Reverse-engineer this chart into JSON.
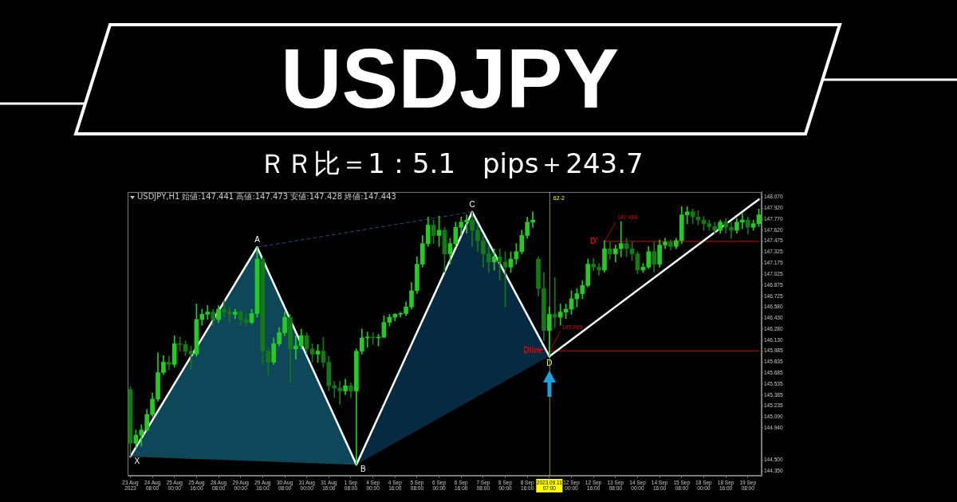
{
  "chart_data": {
    "type": "candlestick",
    "title": "USDJPY",
    "subtitle": "ＲＲ比＝1：5.1　pips＋243.7",
    "colors": [
      "#147a14",
      "#22cc22",
      "#22cc22",
      "#22cc22",
      "#22cc22",
      "#22cc22",
      "#22cc22",
      "#147a14",
      "#22cc22",
      "#147a14",
      "#147a14",
      "#147a14",
      "#22cc22",
      "#22cc22",
      "#22cc22",
      "#147a14",
      "#22cc22",
      "#147a14",
      "#147a14",
      "#22cc22",
      "#147a14",
      "#147a14",
      "#22cc22",
      "#22cc22",
      "#147a14",
      "#147a14",
      "#22cc22",
      "#22cc22",
      "#22cc22",
      "#147a14",
      "#22cc22",
      "#22cc22",
      "#147a14",
      "#147a14",
      "#22cc22",
      "#147a14",
      "#147a14",
      "#147a14",
      "#147a14",
      "#22cc22",
      "#147a14",
      "#22cc22",
      "#22cc22",
      "#22cc22",
      "#147a14",
      "#22cc22",
      "#22cc22",
      "#22cc22",
      "#22cc22",
      "#22cc22",
      "#22cc22",
      "#22cc22",
      "#22cc22",
      "#22cc22",
      "#22cc22",
      "#147a14",
      "#22cc22",
      "#147a14",
      "#22cc22",
      "#22cc22",
      "#22cc22",
      "#22cc22",
      "#147a14",
      "#147a14",
      "#147a14",
      "#147a14",
      "#22cc22",
      "#147a14",
      "#147a14",
      "#22cc22",
      "#22cc22",
      "#22cc22",
      "#22cc22",
      "#22cc22",
      "#147a14",
      "#147a14",
      "#22cc22",
      "#147a14",
      "#22cc22",
      "#22cc22",
      "#22cc22",
      "#22cc22",
      "#22cc22",
      "#22cc22",
      "#147a14",
      "#147a14",
      "#22cc22",
      "#147a14",
      "#22cc22",
      "#22cc22",
      "#147a14",
      "#147a14",
      "#147a14",
      "#22cc22",
      "#22cc22",
      "#147a14",
      "#22cc22",
      "#22cc22",
      "#147a14",
      "#22cc22",
      "#22cc22",
      "#22cc22",
      "#147a14",
      "#147a14",
      "#147a14",
      "#147a14",
      "#147a14",
      "#22cc22",
      "#147a14",
      "#147a14",
      "#22cc22",
      "#22cc22",
      "#147a14",
      "#22cc22",
      "#22cc22"
    ],
    "categories": [
      "23 Aug 2023",
      null,
      null,
      null,
      "24 Aug 08:00",
      null,
      null,
      null,
      "25 Aug 00:00",
      null,
      null,
      null,
      "25 Aug 16:00",
      null,
      null,
      null,
      "28 Aug 08:00",
      null,
      null,
      null,
      "29 Aug 00:00",
      null,
      null,
      null,
      "29 Aug 16:00",
      null,
      null,
      null,
      "30 Aug 08:00",
      null,
      null,
      null,
      "31 Aug 00:00",
      null,
      null,
      null,
      "31 Aug 16:00",
      null,
      null,
      null,
      "1 Sep 08:00",
      null,
      null,
      null,
      "4 Sep 00:00",
      null,
      null,
      null,
      "4 Sep 16:00",
      null,
      null,
      null,
      "5 Sep 08:00",
      null,
      null,
      null,
      "6 Sep 00:00",
      null,
      null,
      null,
      "6 Sep 16:00",
      null,
      null,
      null,
      "7 Sep 08:00",
      null,
      null,
      null,
      "8 Sep 00:00",
      null,
      null,
      null,
      "8 Sep 16:00",
      null,
      null,
      null,
      "2023.09.11 07:00",
      null,
      null,
      null,
      "12 Sep 00:00",
      null,
      null,
      null,
      "12 Sep 16:00",
      null,
      null,
      null,
      "13 Sep 08:00",
      null,
      null,
      null,
      "14 Sep 00:00",
      null,
      null,
      null,
      "14 Sep 16:00",
      null,
      null,
      null,
      "15 Sep 08:00",
      null,
      null,
      null,
      "18 Sep 00:00",
      null,
      null,
      null,
      "18 Sep 16:00",
      null,
      null,
      null,
      "19 Sep 08:00",
      null,
      null
    ],
    "ohlc": [
      [
        145.46,
        145.5,
        144.55,
        144.73
      ],
      [
        144.73,
        144.91,
        144.67,
        144.84
      ],
      [
        144.84,
        144.98,
        144.69,
        144.91
      ],
      [
        144.91,
        145.19,
        144.89,
        145.12
      ],
      [
        145.12,
        145.41,
        145.09,
        145.33
      ],
      [
        145.33,
        145.96,
        145.3,
        145.69
      ],
      [
        145.69,
        145.92,
        145.66,
        145.83
      ],
      [
        145.83,
        145.91,
        145.73,
        145.8
      ],
      [
        145.8,
        146.19,
        145.76,
        146.08
      ],
      [
        146.08,
        146.17,
        145.98,
        146.07
      ],
      [
        146.07,
        146.12,
        145.92,
        145.98
      ],
      [
        145.98,
        146.05,
        145.73,
        145.94
      ],
      [
        145.94,
        146.62,
        145.91,
        146.41
      ],
      [
        146.41,
        146.55,
        146.33,
        146.48
      ],
      [
        146.48,
        146.6,
        146.41,
        146.51
      ],
      [
        146.51,
        146.55,
        146.33,
        146.41
      ],
      [
        146.41,
        146.6,
        146.37,
        146.55
      ],
      [
        146.55,
        146.67,
        146.44,
        146.51
      ],
      [
        146.51,
        146.58,
        146.37,
        146.48
      ],
      [
        146.48,
        146.55,
        146.42,
        146.51
      ],
      [
        146.51,
        146.53,
        146.33,
        146.41
      ],
      [
        146.41,
        146.48,
        146.32,
        146.37
      ],
      [
        146.37,
        146.55,
        146.35,
        146.49
      ],
      [
        146.49,
        147.39,
        146.44,
        147.23
      ],
      [
        147.23,
        147.26,
        145.8,
        145.98
      ],
      [
        145.98,
        146.01,
        145.66,
        145.83
      ],
      [
        145.83,
        146.16,
        145.8,
        146.08
      ],
      [
        146.08,
        146.3,
        146.05,
        146.23
      ],
      [
        146.23,
        146.51,
        146.19,
        146.44
      ],
      [
        146.44,
        146.48,
        145.55,
        146.01
      ],
      [
        146.01,
        146.19,
        145.87,
        146.05
      ],
      [
        146.05,
        146.28,
        146.01,
        146.19
      ],
      [
        146.19,
        146.23,
        145.94,
        146.01
      ],
      [
        146.01,
        146.08,
        145.83,
        145.94
      ],
      [
        145.94,
        146.07,
        145.83,
        145.98
      ],
      [
        145.98,
        146.17,
        145.76,
        145.83
      ],
      [
        145.83,
        145.91,
        145.44,
        145.51
      ],
      [
        145.51,
        145.57,
        145.35,
        145.48
      ],
      [
        145.48,
        145.57,
        145.26,
        145.44
      ],
      [
        145.44,
        145.6,
        145.39,
        145.51
      ],
      [
        145.51,
        145.55,
        145.35,
        145.44
      ],
      [
        145.44,
        146.01,
        144.44,
        145.98
      ],
      [
        145.98,
        146.28,
        145.94,
        146.16
      ],
      [
        146.16,
        146.24,
        146.03,
        146.17
      ],
      [
        146.17,
        146.23,
        146.07,
        146.16
      ],
      [
        146.16,
        146.21,
        146.05,
        146.17
      ],
      [
        146.17,
        146.46,
        146.16,
        146.37
      ],
      [
        146.37,
        146.48,
        146.32,
        146.44
      ],
      [
        146.44,
        146.49,
        146.39,
        146.48
      ],
      [
        146.48,
        146.51,
        146.44,
        146.49
      ],
      [
        146.49,
        146.65,
        146.46,
        146.58
      ],
      [
        146.58,
        146.91,
        146.55,
        146.8
      ],
      [
        146.8,
        147.26,
        146.76,
        147.16
      ],
      [
        147.16,
        147.55,
        147.12,
        147.44
      ],
      [
        147.44,
        147.8,
        147.4,
        147.69
      ],
      [
        147.69,
        147.76,
        147.44,
        147.55
      ],
      [
        147.55,
        147.81,
        147.4,
        147.62
      ],
      [
        147.62,
        147.66,
        147.05,
        147.3
      ],
      [
        147.3,
        147.51,
        147.16,
        147.44
      ],
      [
        147.44,
        147.73,
        147.4,
        147.66
      ],
      [
        147.66,
        147.8,
        147.55,
        147.73
      ],
      [
        147.73,
        147.83,
        147.58,
        147.76
      ],
      [
        147.76,
        147.87,
        147.4,
        147.62
      ],
      [
        147.62,
        147.69,
        147.33,
        147.48
      ],
      [
        147.48,
        147.55,
        147.12,
        147.3
      ],
      [
        147.3,
        147.4,
        147.05,
        147.19
      ],
      [
        147.19,
        147.37,
        147.08,
        147.26
      ],
      [
        147.26,
        147.37,
        146.94,
        147.19
      ],
      [
        147.19,
        147.33,
        146.58,
        147.12
      ],
      [
        147.12,
        147.33,
        147.05,
        147.23
      ],
      [
        147.23,
        147.44,
        147.16,
        147.33
      ],
      [
        147.33,
        147.62,
        147.3,
        147.55
      ],
      [
        147.55,
        147.8,
        147.51,
        147.73
      ],
      [
        147.73,
        147.87,
        147.66,
        147.76
      ],
      [
        147.23,
        147.26,
        146.73,
        146.83
      ],
      [
        146.83,
        147.05,
        146.12,
        146.26
      ],
      [
        146.26,
        146.58,
        145.91,
        146.48
      ],
      [
        146.48,
        146.98,
        146.3,
        146.44
      ],
      [
        146.44,
        146.62,
        146.33,
        146.51
      ],
      [
        146.51,
        146.62,
        146.42,
        146.55
      ],
      [
        146.55,
        146.8,
        146.48,
        146.69
      ],
      [
        146.69,
        146.83,
        146.58,
        146.76
      ],
      [
        146.76,
        146.94,
        146.69,
        146.87
      ],
      [
        146.87,
        147.23,
        146.85,
        147.16
      ],
      [
        147.16,
        147.24,
        147.07,
        147.12
      ],
      [
        147.12,
        147.17,
        147.01,
        147.08
      ],
      [
        147.08,
        147.48,
        147.05,
        147.37
      ],
      [
        147.37,
        147.46,
        147.23,
        147.3
      ],
      [
        147.3,
        147.42,
        147.19,
        147.37
      ],
      [
        147.37,
        147.74,
        147.26,
        147.44
      ],
      [
        147.44,
        147.51,
        147.26,
        147.37
      ],
      [
        147.37,
        147.46,
        147.21,
        147.3
      ],
      [
        147.3,
        147.33,
        147.03,
        147.08
      ],
      [
        147.08,
        147.17,
        147.05,
        147.12
      ],
      [
        147.12,
        147.4,
        147.1,
        147.33
      ],
      [
        147.33,
        147.46,
        147.05,
        147.16
      ],
      [
        147.16,
        147.49,
        147.12,
        147.42
      ],
      [
        147.42,
        147.51,
        147.37,
        147.46
      ],
      [
        147.46,
        147.49,
        147.35,
        147.4
      ],
      [
        147.4,
        147.51,
        147.37,
        147.48
      ],
      [
        147.48,
        147.94,
        147.44,
        147.83
      ],
      [
        147.83,
        147.94,
        147.71,
        147.87
      ],
      [
        147.87,
        147.91,
        147.71,
        147.8
      ],
      [
        147.8,
        147.89,
        147.69,
        147.76
      ],
      [
        147.76,
        147.81,
        147.62,
        147.71
      ],
      [
        147.71,
        147.76,
        147.62,
        147.67
      ],
      [
        147.67,
        147.73,
        147.57,
        147.62
      ],
      [
        147.62,
        147.76,
        147.58,
        147.73
      ],
      [
        147.73,
        147.78,
        147.58,
        147.66
      ],
      [
        147.66,
        147.73,
        147.51,
        147.62
      ],
      [
        147.62,
        147.78,
        147.58,
        147.73
      ],
      [
        147.73,
        147.85,
        147.64,
        147.76
      ],
      [
        147.76,
        147.8,
        147.57,
        147.66
      ],
      [
        147.66,
        147.76,
        147.62,
        147.71
      ],
      [
        147.71,
        147.91,
        147.67,
        147.83
      ]
    ],
    "series": [
      {
        "type": "line",
        "color": "#ffffff",
        "values": [
          144.55,
          null,
          null,
          null,
          null,
          null,
          null,
          null,
          null,
          null,
          null,
          null,
          null,
          null,
          null,
          null,
          null,
          null,
          null,
          null,
          null,
          null,
          null,
          147.39,
          null,
          null,
          null,
          null,
          null,
          null,
          null,
          null,
          null,
          null,
          null,
          null,
          null,
          null,
          null,
          null,
          null,
          144.44,
          null,
          null,
          null,
          null,
          null,
          null,
          null,
          null,
          null,
          null,
          null,
          null,
          null,
          null,
          null,
          null,
          null,
          null,
          null,
          null,
          147.87,
          null,
          null,
          null,
          null,
          null,
          null,
          null,
          null,
          null,
          null,
          null,
          null,
          null,
          145.91,
          null,
          null,
          null,
          null,
          null,
          null,
          null,
          null,
          null,
          null,
          null,
          null,
          null,
          null,
          null,
          null,
          null,
          null,
          null,
          null,
          null,
          null,
          null,
          null,
          null,
          null,
          null,
          null,
          null,
          null,
          null,
          null,
          null,
          null,
          null,
          null,
          null,
          null
        ],
        "value_labels": [
          "X",
          null,
          null,
          null,
          null,
          null,
          null,
          null,
          null,
          null,
          null,
          null,
          null,
          null,
          null,
          null,
          null,
          null,
          null,
          null,
          null,
          null,
          null,
          "A",
          null,
          null,
          null,
          null,
          null,
          null,
          null,
          null,
          null,
          null,
          null,
          null,
          null,
          null,
          null,
          null,
          null,
          "B",
          null,
          null,
          null,
          null,
          null,
          null,
          null,
          null,
          null,
          null,
          null,
          null,
          null,
          null,
          null,
          null,
          null,
          null,
          null,
          null,
          "C",
          null,
          null,
          null,
          null,
          null,
          null,
          null,
          null,
          null,
          null,
          null,
          null,
          null,
          "D",
          null,
          null,
          null,
          null,
          null,
          null,
          null,
          null,
          null,
          null,
          null,
          null,
          null,
          null,
          null,
          null,
          null,
          null,
          null,
          null,
          null,
          null,
          null,
          null,
          null,
          null,
          null,
          null,
          null,
          null,
          null,
          null,
          null,
          null,
          null,
          null,
          null,
          null
        ]
      },
      {
        "type": "line",
        "color": "#ffffff",
        "values": [
          null,
          null,
          null,
          null,
          null,
          null,
          null,
          null,
          null,
          null,
          null,
          null,
          null,
          null,
          null,
          null,
          null,
          null,
          null,
          null,
          null,
          null,
          null,
          null,
          null,
          null,
          null,
          null,
          null,
          null,
          null,
          null,
          null,
          null,
          null,
          null,
          null,
          null,
          null,
          null,
          null,
          null,
          null,
          null,
          null,
          null,
          null,
          null,
          null,
          null,
          null,
          null,
          null,
          null,
          null,
          null,
          null,
          null,
          null,
          null,
          null,
          null,
          null,
          null,
          null,
          null,
          null,
          null,
          null,
          null,
          null,
          null,
          null,
          null,
          null,
          null,
          145.91,
          null,
          null,
          null,
          null,
          null,
          null,
          null,
          null,
          null,
          null,
          null,
          null,
          null,
          null,
          null,
          null,
          null,
          null,
          null,
          null,
          null,
          null,
          null,
          null,
          null,
          null,
          null,
          null,
          null,
          null,
          null,
          null,
          null,
          null,
          null,
          null,
          null,
          148.04
        ]
      },
      {
        "type": "line",
        "color": "#1f4e7a",
        "line_style": "dashed",
        "values": [
          null,
          null,
          null,
          null,
          null,
          null,
          null,
          null,
          null,
          null,
          null,
          null,
          null,
          null,
          null,
          null,
          null,
          null,
          null,
          null,
          null,
          null,
          null,
          147.39,
          null,
          null,
          null,
          null,
          null,
          null,
          null,
          null,
          null,
          null,
          null,
          null,
          null,
          null,
          null,
          null,
          null,
          null,
          null,
          null,
          null,
          null,
          null,
          null,
          null,
          null,
          null,
          null,
          null,
          null,
          null,
          null,
          null,
          null,
          null,
          null,
          null,
          null,
          147.87,
          null,
          null,
          null,
          null,
          null,
          null,
          null,
          null,
          null,
          null,
          null,
          null,
          null,
          null,
          null,
          null,
          null,
          null,
          null,
          null,
          null,
          null,
          null,
          null,
          null,
          null,
          null,
          null,
          null,
          null,
          null,
          null,
          null,
          null,
          null,
          null,
          null,
          null,
          null,
          null,
          null,
          null,
          null,
          null,
          null,
          null,
          null,
          null,
          null,
          null,
          null,
          null
        ]
      },
      {
        "type": "line",
        "name": "Dline",
        "color": "#e00000",
        "values": [
          null,
          null,
          null,
          null,
          null,
          null,
          null,
          null,
          null,
          null,
          null,
          null,
          null,
          null,
          null,
          null,
          null,
          null,
          null,
          null,
          null,
          null,
          null,
          null,
          null,
          null,
          null,
          null,
          null,
          null,
          null,
          null,
          null,
          null,
          null,
          null,
          null,
          null,
          null,
          null,
          null,
          null,
          null,
          null,
          null,
          null,
          null,
          null,
          null,
          null,
          null,
          null,
          null,
          null,
          null,
          null,
          null,
          null,
          null,
          null,
          null,
          null,
          null,
          null,
          null,
          null,
          null,
          null,
          null,
          null,
          null,
          null,
          null,
          null,
          null,
          null,
          145.985,
          null,
          null,
          null,
          null,
          null,
          null,
          null,
          null,
          null,
          null,
          null,
          null,
          null,
          null,
          null,
          null,
          null,
          null,
          null,
          null,
          null,
          null,
          null,
          null,
          null,
          null,
          null,
          null,
          null,
          null,
          null,
          null,
          null,
          null,
          null,
          null,
          null,
          145.985
        ],
        "value_labels": [
          null,
          null,
          null,
          null,
          null,
          null,
          null,
          null,
          null,
          null,
          null,
          null,
          null,
          null,
          null,
          null,
          null,
          null,
          null,
          null,
          null,
          null,
          null,
          null,
          null,
          null,
          null,
          null,
          null,
          null,
          null,
          null,
          null,
          null,
          null,
          null,
          null,
          null,
          null,
          null,
          null,
          null,
          null,
          null,
          null,
          null,
          null,
          null,
          null,
          null,
          null,
          null,
          null,
          null,
          null,
          null,
          null,
          null,
          null,
          null,
          null,
          null,
          null,
          null,
          null,
          null,
          null,
          null,
          null,
          null,
          null,
          null,
          null,
          null,
          null,
          null,
          "145.985",
          null,
          null,
          null,
          null,
          null,
          null,
          null,
          null,
          null,
          null,
          null,
          null,
          null,
          null,
          null,
          null,
          null,
          null,
          null,
          null,
          null,
          null,
          null,
          null,
          null,
          null,
          null,
          null,
          null,
          null,
          null,
          null,
          null,
          null,
          null,
          null,
          null,
          null
        ]
      },
      {
        "type": "line",
        "name": "D'",
        "color": "#e00000",
        "values": [
          null,
          null,
          null,
          null,
          null,
          null,
          null,
          null,
          null,
          null,
          null,
          null,
          null,
          null,
          null,
          null,
          null,
          null,
          null,
          null,
          null,
          null,
          null,
          null,
          null,
          null,
          null,
          null,
          null,
          null,
          null,
          null,
          null,
          null,
          null,
          null,
          null,
          null,
          null,
          null,
          null,
          null,
          null,
          null,
          null,
          null,
          null,
          null,
          null,
          null,
          null,
          null,
          null,
          null,
          null,
          null,
          null,
          null,
          null,
          null,
          null,
          null,
          null,
          null,
          null,
          null,
          null,
          null,
          null,
          null,
          null,
          null,
          null,
          null,
          null,
          null,
          null,
          null,
          null,
          null,
          null,
          null,
          null,
          null,
          null,
          null,
          147.469,
          null,
          null,
          null,
          null,
          null,
          null,
          null,
          null,
          null,
          null,
          null,
          null,
          null,
          null,
          null,
          null,
          null,
          null,
          null,
          null,
          null,
          null,
          null,
          null,
          null,
          null,
          null,
          147.469
        ],
        "value_labels": [
          null,
          null,
          null,
          null,
          null,
          null,
          null,
          null,
          null,
          null,
          null,
          null,
          null,
          null,
          null,
          null,
          null,
          null,
          null,
          null,
          null,
          null,
          null,
          null,
          null,
          null,
          null,
          null,
          null,
          null,
          null,
          null,
          null,
          null,
          null,
          null,
          null,
          null,
          null,
          null,
          null,
          null,
          null,
          null,
          null,
          null,
          null,
          null,
          null,
          null,
          null,
          null,
          null,
          null,
          null,
          null,
          null,
          null,
          null,
          null,
          null,
          null,
          null,
          null,
          null,
          null,
          null,
          null,
          null,
          null,
          null,
          null,
          null,
          null,
          null,
          null,
          null,
          null,
          null,
          null,
          null,
          null,
          null,
          null,
          null,
          null,
          "147.469",
          null,
          null,
          null,
          null,
          null,
          null,
          null,
          null,
          null,
          null,
          null,
          null,
          null,
          null,
          null,
          null,
          null,
          null,
          null,
          null,
          null,
          null,
          null,
          null,
          null,
          null,
          null,
          null
        ]
      }
    ],
    "ylim": [
      144.29,
      148.14
    ],
    "yticks": [
      {
        "value": 148.07,
        "label": "148.070"
      },
      {
        "value": 147.92,
        "label": "147.920"
      },
      {
        "value": 147.77,
        "label": "147.770"
      },
      {
        "value": 147.62,
        "label": "147.620"
      },
      {
        "value": 147.475,
        "label": "147.475"
      },
      {
        "value": 147.325,
        "label": "147.325"
      },
      {
        "value": 147.175,
        "label": "147.175"
      },
      {
        "value": 147.025,
        "label": "147.025"
      },
      {
        "value": 146.875,
        "label": "146.875"
      },
      {
        "value": 146.725,
        "label": "146.725"
      },
      {
        "value": 146.58,
        "label": "146.580"
      },
      {
        "value": 146.43,
        "label": "146.430"
      },
      {
        "value": 146.28,
        "label": "146.280"
      },
      {
        "value": 146.13,
        "label": "146.130"
      },
      {
        "value": 145.985,
        "label": "145.985"
      },
      {
        "value": 145.835,
        "label": "145.835"
      },
      {
        "value": 145.685,
        "label": "145.685"
      },
      {
        "value": 145.535,
        "label": "145.535"
      },
      {
        "value": 145.385,
        "label": "145.385"
      },
      {
        "value": 145.235,
        "label": "145.235"
      },
      {
        "value": 145.09,
        "label": "145.090"
      },
      {
        "value": 144.94,
        "label": "144.940"
      },
      {
        "value": 144.5,
        "label": "144.500"
      },
      {
        "value": 144.35,
        "label": "144.350"
      }
    ],
    "ref_lines": [
      {
        "axis": "x",
        "value": "2023.09.11 07:00",
        "label": "62-2",
        "color": "#ffff00"
      }
    ],
    "annotations": [
      "USDJPY,H1 始値:147.441 高値:147.473 安値:147.428 終値:147.443"
    ]
  }
}
